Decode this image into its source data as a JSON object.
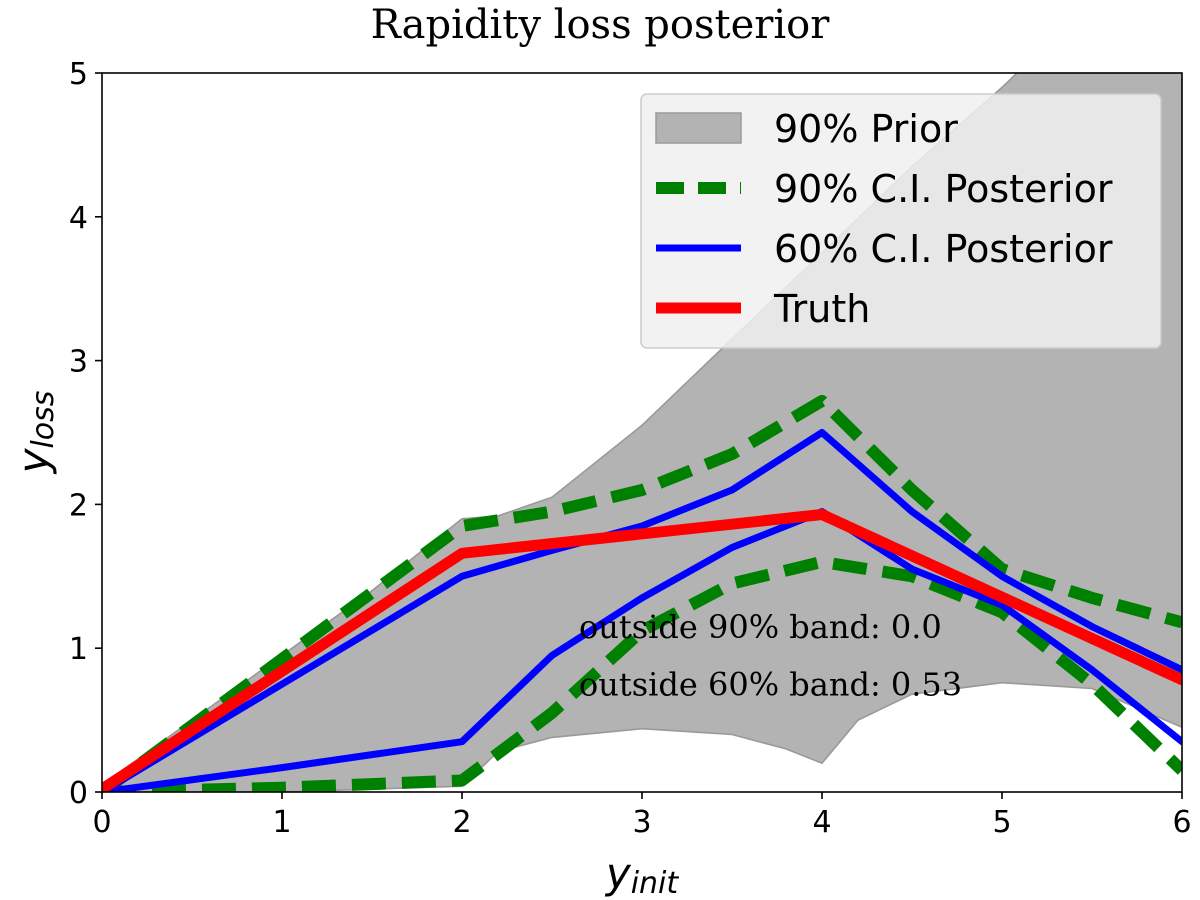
{
  "chart_data": {
    "type": "line",
    "title": "Rapidity loss posterior",
    "xlabel": "y",
    "xlabel_sub": "init",
    "ylabel": "y",
    "ylabel_sub": "loss",
    "xlim": [
      0,
      6
    ],
    "ylim": [
      0,
      5
    ],
    "xticks": [
      0,
      1,
      2,
      3,
      4,
      5,
      6
    ],
    "yticks": [
      0,
      1,
      2,
      3,
      4,
      5
    ],
    "xtick_labels": [
      "0",
      "1",
      "2",
      "3",
      "4",
      "5",
      "6"
    ],
    "ytick_labels": [
      "0",
      "1",
      "2",
      "3",
      "4",
      "5"
    ],
    "grid": false,
    "legend_position": "top-right",
    "prior_band": {
      "name": "90% Prior",
      "color": "#b3b3b3",
      "upper": [
        [
          0,
          0.05
        ],
        [
          0.5,
          0.5
        ],
        [
          1,
          0.95
        ],
        [
          1.5,
          1.4
        ],
        [
          2,
          1.9
        ],
        [
          2.2,
          1.92
        ],
        [
          2.5,
          2.05
        ],
        [
          3,
          2.55
        ],
        [
          3.5,
          3.15
        ],
        [
          4,
          3.75
        ],
        [
          4.5,
          4.35
        ],
        [
          5,
          4.9
        ],
        [
          5.5,
          5.5
        ],
        [
          6,
          6.2
        ]
      ],
      "lower": [
        [
          0,
          0.0
        ],
        [
          1,
          0.0
        ],
        [
          2,
          0.04
        ],
        [
          2.2,
          0.28
        ],
        [
          2.5,
          0.38
        ],
        [
          3,
          0.44
        ],
        [
          3.5,
          0.4
        ],
        [
          3.8,
          0.3
        ],
        [
          4,
          0.2
        ],
        [
          4.2,
          0.5
        ],
        [
          4.5,
          0.68
        ],
        [
          5,
          0.76
        ],
        [
          5.5,
          0.72
        ],
        [
          6,
          0.45
        ]
      ]
    },
    "series": [
      {
        "name": "90% C.I. Posterior",
        "color": "#008000",
        "style": "dashed",
        "lines": [
          [
            [
              0,
              0.0
            ],
            [
              2,
              1.85
            ],
            [
              2.5,
              1.95
            ],
            [
              3,
              2.1
            ],
            [
              3.5,
              2.35
            ],
            [
              4,
              2.72
            ],
            [
              4.5,
              2.1
            ],
            [
              5,
              1.55
            ],
            [
              5.5,
              1.35
            ],
            [
              6,
              1.18
            ]
          ],
          [
            [
              0,
              0.0
            ],
            [
              1,
              0.03
            ],
            [
              2,
              0.08
            ],
            [
              2.5,
              0.55
            ],
            [
              3,
              1.12
            ],
            [
              3.5,
              1.45
            ],
            [
              4,
              1.6
            ],
            [
              4.5,
              1.5
            ],
            [
              5,
              1.25
            ],
            [
              5.5,
              0.75
            ],
            [
              6,
              0.15
            ]
          ]
        ]
      },
      {
        "name": "60% C.I. Posterior",
        "color": "#0000ff",
        "style": "solid",
        "lines": [
          [
            [
              0,
              0.0
            ],
            [
              2,
              1.5
            ],
            [
              2.5,
              1.68
            ],
            [
              3,
              1.85
            ],
            [
              3.5,
              2.1
            ],
            [
              4,
              2.5
            ],
            [
              4.5,
              1.95
            ],
            [
              5,
              1.5
            ],
            [
              5.5,
              1.15
            ],
            [
              6,
              0.85
            ]
          ],
          [
            [
              0,
              0.0
            ],
            [
              1,
              0.17
            ],
            [
              2,
              0.35
            ],
            [
              2.5,
              0.95
            ],
            [
              3,
              1.35
            ],
            [
              3.5,
              1.7
            ],
            [
              4,
              1.95
            ],
            [
              4.5,
              1.55
            ],
            [
              5,
              1.3
            ],
            [
              5.5,
              0.85
            ],
            [
              6,
              0.35
            ]
          ]
        ]
      },
      {
        "name": "Truth",
        "color": "#ff0000",
        "style": "solid",
        "lines": [
          [
            [
              0,
              0.02
            ],
            [
              2,
              1.66
            ],
            [
              4,
              1.93
            ],
            [
              6,
              0.78
            ]
          ]
        ]
      }
    ],
    "annotations": [
      {
        "text": "outside 90% band: 0.0",
        "x": 2.65,
        "y": 1.07
      },
      {
        "text": "outside 60% band: 0.53",
        "x": 2.65,
        "y": 0.67
      }
    ]
  }
}
